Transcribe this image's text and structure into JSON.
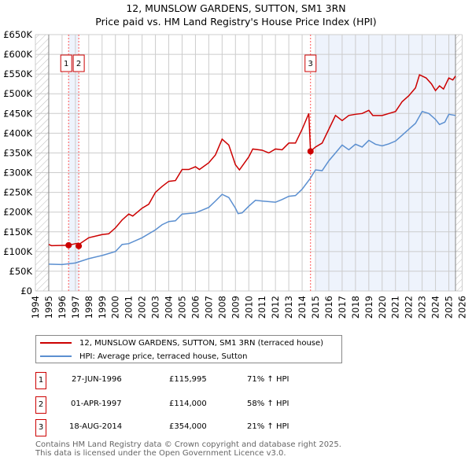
{
  "chart_data": {
    "type": "line",
    "title": "12, MUNSLOW GARDENS, SUTTON, SM1 3RN",
    "subtitle": "Price paid vs. HM Land Registry's House Price Index (HPI)",
    "xlim": [
      1994,
      2026
    ],
    "ylim": [
      0,
      650000
    ],
    "x_ticks": [
      "1994",
      "1995",
      "1996",
      "1997",
      "1998",
      "1999",
      "2000",
      "2001",
      "2002",
      "2003",
      "2004",
      "2005",
      "2006",
      "2007",
      "2008",
      "2009",
      "2010",
      "2011",
      "2012",
      "2013",
      "2014",
      "2015",
      "2016",
      "2017",
      "2018",
      "2019",
      "2020",
      "2021",
      "2022",
      "2023",
      "2024",
      "2025",
      "2026"
    ],
    "y_ticks": [
      {
        "v": 0,
        "l": "£0"
      },
      {
        "v": 50000,
        "l": "£50K"
      },
      {
        "v": 100000,
        "l": "£100K"
      },
      {
        "v": 150000,
        "l": "£150K"
      },
      {
        "v": 200000,
        "l": "£200K"
      },
      {
        "v": 250000,
        "l": "£250K"
      },
      {
        "v": 300000,
        "l": "£300K"
      },
      {
        "v": 350000,
        "l": "£350K"
      },
      {
        "v": 400000,
        "l": "£400K"
      },
      {
        "v": 450000,
        "l": "£450K"
      },
      {
        "v": 500000,
        "l": "£500K"
      },
      {
        "v": 550000,
        "l": "£550K"
      },
      {
        "v": 600000,
        "l": "£600K"
      },
      {
        "v": 650000,
        "l": "£650K"
      }
    ],
    "grid": true,
    "series": [
      {
        "name": "12, MUNSLOW GARDENS, SUTTON, SM1 3RN (terraced house)",
        "color": "#cc0000",
        "x": [
          1995,
          1995.2,
          1996.49,
          1997,
          1997.2,
          1997.25,
          1997.35,
          1998,
          1999,
          1999.5,
          2000,
          2000.5,
          2001,
          2001.3,
          2002,
          2002.5,
          2003,
          2003.5,
          2004,
          2004.5,
          2005,
          2005.5,
          2006,
          2006.3,
          2007,
          2007.5,
          2008,
          2008.5,
          2009,
          2009.3,
          2010,
          2010.3,
          2011,
          2011.5,
          2012,
          2012.5,
          2013,
          2013.5,
          2014,
          2014.5,
          2014.63,
          2015,
          2015.5,
          2016,
          2016.5,
          2017,
          2017.5,
          2018,
          2018.5,
          2019,
          2019.3,
          2020,
          2020.5,
          2021,
          2021.5,
          2022,
          2022.5,
          2022.8,
          2023,
          2023.3,
          2023.7,
          2024,
          2024.3,
          2024.6,
          2025,
          2025.3,
          2025.5
        ],
        "y": [
          118000,
          115000,
          115995,
          120000,
          121000,
          114000,
          120000,
          135000,
          143000,
          145000,
          160000,
          180000,
          195000,
          190000,
          210000,
          220000,
          250000,
          265000,
          278000,
          280000,
          308000,
          308000,
          315000,
          308000,
          325000,
          345000,
          385000,
          370000,
          320000,
          307000,
          340000,
          360000,
          357000,
          350000,
          360000,
          358000,
          375000,
          375000,
          410000,
          450000,
          354000,
          365000,
          375000,
          410000,
          445000,
          432000,
          445000,
          448000,
          450000,
          458000,
          445000,
          445000,
          450000,
          455000,
          480000,
          495000,
          515000,
          548000,
          545000,
          540000,
          525000,
          508000,
          520000,
          512000,
          540000,
          535000,
          545000
        ]
      },
      {
        "name": "HPI: Average price, terraced house, Sutton",
        "color": "#5b8fd0",
        "x": [
          1995,
          1996,
          1996.5,
          1997,
          1998,
          1999,
          2000,
          2000.5,
          2001,
          2002,
          2003,
          2003.5,
          2004,
          2004.5,
          2005,
          2006,
          2007,
          2007.5,
          2008,
          2008.5,
          2009,
          2009.2,
          2009.5,
          2010,
          2010.5,
          2011,
          2012,
          2012.5,
          2013,
          2013.5,
          2014,
          2014.6,
          2015,
          2015.5,
          2016,
          2016.5,
          2017,
          2017.5,
          2018,
          2018.5,
          2019,
          2019.5,
          2020,
          2020.5,
          2021,
          2021.5,
          2022,
          2022.5,
          2023,
          2023.5,
          2024,
          2024.3,
          2024.7,
          2025,
          2025.5
        ],
        "y": [
          68000,
          67000,
          69000,
          71000,
          82000,
          90000,
          100000,
          118000,
          120000,
          135000,
          155000,
          168000,
          176000,
          178000,
          195000,
          198000,
          212000,
          228000,
          245000,
          237000,
          210000,
          196000,
          198000,
          215000,
          230000,
          228000,
          225000,
          232000,
          240000,
          242000,
          258000,
          285000,
          307000,
          305000,
          330000,
          350000,
          370000,
          358000,
          372000,
          365000,
          382000,
          372000,
          368000,
          373000,
          380000,
          395000,
          410000,
          425000,
          455000,
          450000,
          435000,
          422000,
          428000,
          448000,
          445000
        ]
      }
    ],
    "sales": [
      {
        "id": "1",
        "x": 1996.49,
        "date": "27-JUN-1996",
        "price": "£115,995",
        "value": 115995,
        "hpi": "71% ↑ HPI"
      },
      {
        "id": "2",
        "x": 1997.25,
        "date": "01-APR-1997",
        "price": "£114,000",
        "value": 114000,
        "hpi": "58% ↑ HPI"
      },
      {
        "id": "3",
        "x": 2014.63,
        "date": "18-AUG-2014",
        "price": "£354,000",
        "value": 354000,
        "hpi": "21% ↑ HPI"
      }
    ]
  },
  "footer": {
    "line1": "Contains HM Land Registry data © Crown copyright and database right 2025.",
    "line2": "This data is licensed under the Open Government Licence v3.0."
  }
}
